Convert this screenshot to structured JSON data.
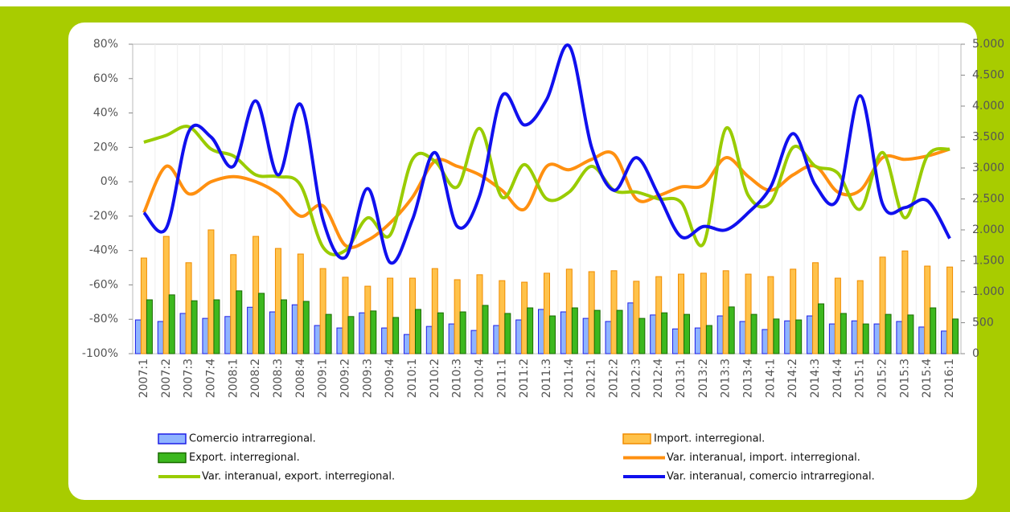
{
  "chart_data": {
    "type": "combo",
    "categories": [
      "2007:1",
      "2007:2",
      "2007:3",
      "2007:4",
      "2008:1",
      "2008:2",
      "2008:3",
      "2008:4",
      "2009:1",
      "2009:2",
      "2009:3",
      "2009:4",
      "2010:1",
      "2010:2",
      "2010:3",
      "2010:4",
      "2011:1",
      "2011:2",
      "2011:3",
      "2011:4",
      "2012:1",
      "2012:2",
      "2012:3",
      "2012:4",
      "2013:1",
      "2013:2",
      "2013:3",
      "2013:4",
      "2014:1",
      "2014:2",
      "2014:3",
      "2014:4",
      "2015:1",
      "2015:2",
      "2015:3",
      "2015:4",
      "2016:1"
    ],
    "ylim": [
      -100,
      80
    ],
    "yticks": [
      {
        "value": -100,
        "label": "-100%"
      },
      {
        "value": -80,
        "label": "-80%"
      },
      {
        "value": -60,
        "label": "-60%"
      },
      {
        "value": -40,
        "label": "-40%"
      },
      {
        "value": -20,
        "label": "-20%"
      },
      {
        "value": 0,
        "label": "0%"
      },
      {
        "value": 20,
        "label": "20%"
      },
      {
        "value": 40,
        "label": "40%"
      },
      {
        "value": 60,
        "label": "60%"
      },
      {
        "value": 80,
        "label": "80%"
      }
    ],
    "y2lim": [
      0,
      5000
    ],
    "y2ticks": [
      0,
      500,
      {
        "value": 1000,
        "label": "1.000"
      },
      {
        "value": 1500,
        "label": "1.500"
      },
      {
        "value": 2000,
        "label": "2.000"
      },
      {
        "value": 2500,
        "label": "2.500"
      },
      {
        "value": 3000,
        "label": "3.000"
      },
      {
        "value": 3500,
        "label": "3.500"
      },
      {
        "value": 4000,
        "label": "4.000"
      },
      {
        "value": 4500,
        "label": "4.500"
      },
      {
        "value": 5000,
        "label": "5.000"
      }
    ],
    "series": [
      {
        "name": "Comercio intrarregional.",
        "type": "bar",
        "axis": "y2",
        "color": "#8fb4ff",
        "stroke": "#1e1ee6",
        "values": [
          545,
          520,
          650,
          570,
          600,
          750,
          675,
          790,
          455,
          415,
          660,
          415,
          310,
          440,
          480,
          375,
          455,
          545,
          715,
          675,
          570,
          520,
          820,
          625,
          400,
          415,
          610,
          520,
          390,
          530,
          610,
          480,
          530,
          480,
          520,
          430,
          365
        ]
      },
      {
        "name": "Import. interregional.",
        "type": "bar",
        "axis": "y2",
        "color": "#ffc24a",
        "stroke": "#f08c00",
        "values": [
          1545,
          1895,
          1470,
          2000,
          1600,
          1895,
          1700,
          1610,
          1375,
          1235,
          1090,
          1220,
          1220,
          1375,
          1195,
          1275,
          1180,
          1155,
          1300,
          1365,
          1325,
          1340,
          1170,
          1245,
          1285,
          1300,
          1340,
          1285,
          1245,
          1365,
          1470,
          1220,
          1180,
          1560,
          1660,
          1415,
          1400
        ]
      },
      {
        "name": "Export. interregional.",
        "type": "bar",
        "axis": "y2",
        "color": "#3cb81e",
        "stroke": "#1a6b00",
        "values": [
          870,
          950,
          855,
          870,
          1015,
          975,
          870,
          845,
          635,
          600,
          690,
          585,
          715,
          660,
          675,
          780,
          650,
          740,
          610,
          740,
          700,
          700,
          570,
          660,
          635,
          455,
          755,
          635,
          560,
          545,
          805,
          650,
          480,
          635,
          625,
          740,
          560
        ]
      },
      {
        "name": "Var. interanual, import. interregional.",
        "type": "line",
        "color": "#ff9010",
        "values": [
          -18,
          9,
          -7,
          0,
          3,
          0,
          -7,
          -20,
          -14,
          -37,
          -34,
          -24,
          -9,
          12,
          9,
          4,
          -5,
          -16,
          9,
          7,
          13,
          16,
          -10,
          -8,
          -3,
          -2,
          14,
          3,
          -5,
          4,
          9,
          -6,
          -5,
          14,
          13,
          15,
          19
        ]
      },
      {
        "name": "Var. interanual, export. interregional.",
        "type": "line",
        "color": "#99cc00",
        "values": [
          23,
          27,
          32,
          19,
          15,
          4,
          3,
          -2,
          -38,
          -40,
          -21,
          -31,
          13,
          12,
          -3,
          31,
          -9,
          10,
          -10,
          -6,
          9,
          -5,
          -6,
          -10,
          -12,
          -36,
          31,
          -8,
          -12,
          20,
          9,
          5,
          -16,
          17,
          -21,
          15,
          19
        ]
      },
      {
        "name": "Var. interanual, comercio intrarregional.",
        "type": "line",
        "color": "#1010ee",
        "values": [
          -18,
          -27,
          29,
          26,
          9,
          47,
          4,
          45,
          -22,
          -44,
          -4,
          -47,
          -22,
          17,
          -26,
          -8,
          50,
          33,
          48,
          79,
          20,
          -5,
          14,
          -8,
          -32,
          -26,
          -28,
          -18,
          -3,
          28,
          -2,
          -10,
          50,
          -13,
          -15,
          -11,
          -33
        ]
      }
    ]
  }
}
